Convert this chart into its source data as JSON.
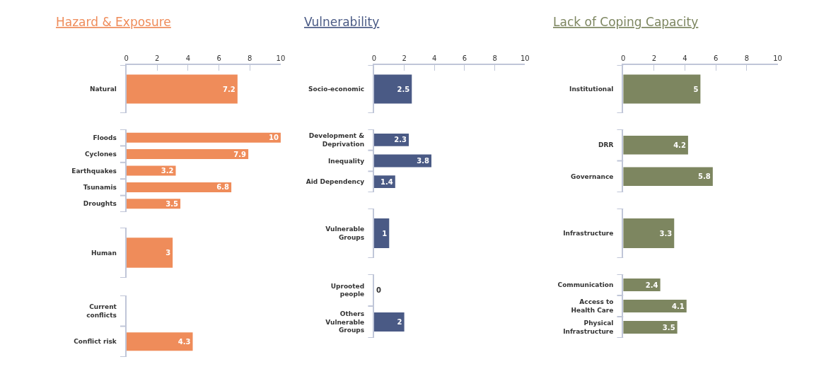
{
  "chart_data": [
    {
      "type": "bar",
      "orientation": "horizontal",
      "title": "Hazard & Exposure",
      "categories": [
        "Natural"
      ],
      "values": [
        7.2
      ],
      "color": "#ef8c5a",
      "xlim": [
        0,
        10
      ],
      "xticks": [
        0,
        2,
        4,
        6,
        8,
        10
      ],
      "data_labels": true
    },
    {
      "type": "bar",
      "orientation": "horizontal",
      "categories": [
        "Floods",
        "Cyclones",
        "Earthquakes",
        "Tsunamis",
        "Droughts"
      ],
      "values": [
        10,
        7.9,
        3.2,
        6.8,
        3.5
      ],
      "color": "#ef8c5a",
      "xlim": [
        0,
        10
      ],
      "tick_labels": "y",
      "data_labels": true
    },
    {
      "type": "bar",
      "orientation": "horizontal",
      "categories": [
        "Human"
      ],
      "values": [
        3
      ],
      "color": "#ef8c5a",
      "xlim": [
        0,
        10
      ],
      "tick_labels": "y",
      "data_labels": true
    },
    {
      "type": "bar",
      "orientation": "horizontal",
      "categories": [
        "Current\nconflicts",
        "Conflict risk"
      ],
      "values": [
        null,
        4.3
      ],
      "color": "#ef8c5a",
      "xlim": [
        0,
        10
      ],
      "tick_labels": "y",
      "data_labels": true
    },
    {
      "type": "bar",
      "orientation": "horizontal",
      "title": "Vulnerability",
      "categories": [
        "Socio-economic"
      ],
      "values": [
        2.5
      ],
      "color": "#4a5a85",
      "xlim": [
        0,
        10
      ],
      "xticks": [
        0,
        2,
        4,
        6,
        8,
        10
      ],
      "data_labels": true
    },
    {
      "type": "bar",
      "orientation": "horizontal",
      "categories": [
        "Development &\nDeprivation",
        "Inequality",
        "Aid Dependency"
      ],
      "values": [
        2.3,
        3.8,
        1.4
      ],
      "color": "#4a5a85",
      "xlim": [
        0,
        10
      ],
      "tick_labels": "y",
      "data_labels": true
    },
    {
      "type": "bar",
      "orientation": "horizontal",
      "categories": [
        "Vulnerable\nGroups"
      ],
      "values": [
        1
      ],
      "color": "#4a5a85",
      "xlim": [
        0,
        10
      ],
      "tick_labels": "y",
      "data_labels": true
    },
    {
      "type": "bar",
      "orientation": "horizontal",
      "categories": [
        "Uprooted\npeople",
        "Others\nVulnerable\nGroups"
      ],
      "values": [
        0,
        2
      ],
      "color": "#4a5a85",
      "xlim": [
        0,
        10
      ],
      "tick_labels": "y",
      "data_labels": true
    },
    {
      "type": "bar",
      "orientation": "horizontal",
      "title": "Lack of Coping Capacity",
      "categories": [
        "Institutional"
      ],
      "values": [
        5
      ],
      "color": "#7d8660",
      "xlim": [
        0,
        10
      ],
      "xticks": [
        0,
        2,
        4,
        6,
        8,
        10
      ],
      "data_labels": true
    },
    {
      "type": "bar",
      "orientation": "horizontal",
      "categories": [
        "DRR",
        "Governance"
      ],
      "values": [
        4.2,
        5.8
      ],
      "color": "#7d8660",
      "xlim": [
        0,
        10
      ],
      "tick_labels": "y",
      "data_labels": true
    },
    {
      "type": "bar",
      "orientation": "horizontal",
      "categories": [
        "Infrastructure"
      ],
      "values": [
        3.3
      ],
      "color": "#7d8660",
      "xlim": [
        0,
        10
      ],
      "tick_labels": "y",
      "data_labels": true
    },
    {
      "type": "bar",
      "orientation": "horizontal",
      "categories": [
        "Communication",
        "Access to\nHealth Care",
        "Physical\nInfrastructure"
      ],
      "values": [
        2.4,
        4.1,
        3.5
      ],
      "color": "#7d8660",
      "xlim": [
        0,
        10
      ],
      "tick_labels": "y",
      "data_labels": true
    }
  ]
}
